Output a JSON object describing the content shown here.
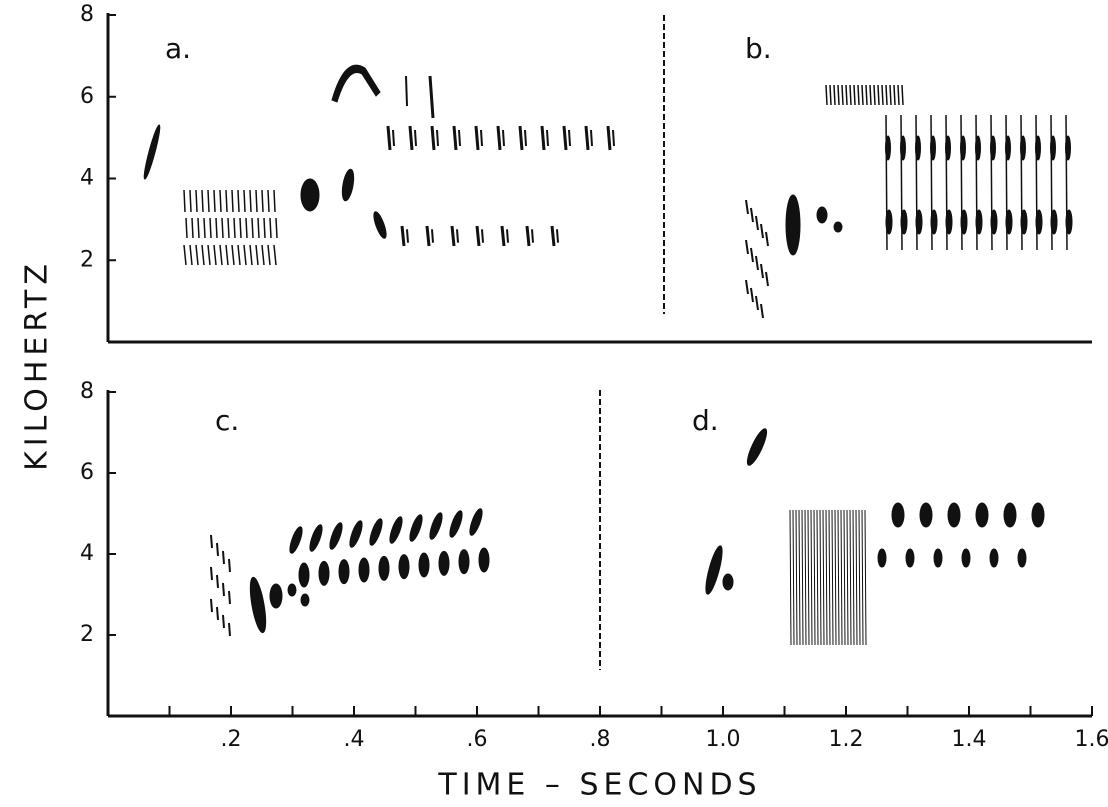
{
  "figure": {
    "ylabel": "KILOHERTZ",
    "xlabel": "TIME – SECONDS"
  },
  "chart_data": [
    {
      "type": "spectrogram",
      "panels": [
        "a.",
        "b."
      ],
      "xlim": [
        0,
        1.6
      ],
      "ylim": [
        0,
        8
      ],
      "yticks": [
        2,
        4,
        6,
        8
      ]
    },
    {
      "type": "spectrogram",
      "panels": [
        "c.",
        "d."
      ],
      "xlim": [
        0,
        1.6
      ],
      "ylim": [
        0,
        8
      ],
      "yticks": [
        2,
        4,
        6,
        8
      ],
      "xticks": [
        {
          "value": 0.2,
          "label": ".2"
        },
        {
          "value": 0.4,
          "label": ".4"
        },
        {
          "value": 0.6,
          "label": ".6"
        },
        {
          "value": 0.8,
          "label": ".8"
        },
        {
          "value": 1,
          "label": "1.0"
        },
        {
          "value": 1.2,
          "label": "1.2"
        },
        {
          "value": 1.4,
          "label": "1.4"
        },
        {
          "value": 1.6,
          "label": "1.6"
        }
      ],
      "x_minor_ticks": [
        0.1,
        0.3,
        0.5,
        0.7,
        0.9,
        1.1,
        1.3,
        1.5
      ]
    }
  ]
}
